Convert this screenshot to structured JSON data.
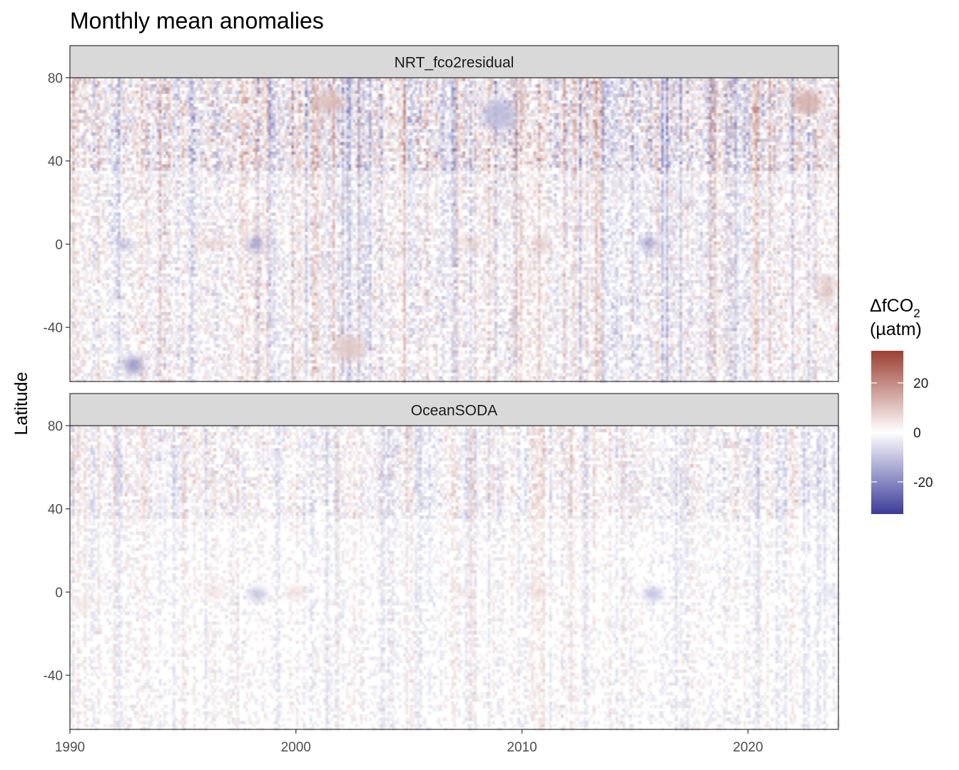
{
  "chart_data": {
    "type": "heatmap",
    "title": "Monthly mean anomalies",
    "ylabel": "Latitude",
    "xlabel": "",
    "xlim": [
      1990,
      2024
    ],
    "ylim": [
      -66,
      80
    ],
    "x_ticks": [
      1990,
      2000,
      2010,
      2020
    ],
    "y_ticks": [
      80,
      40,
      0,
      -40
    ],
    "grid": false,
    "panels": [
      {
        "name": "NRT_fco2residual",
        "features": [
          {
            "x": 1992.4,
            "y": 0,
            "w": 0.6,
            "h": 4,
            "value": -14
          },
          {
            "x": 1998.2,
            "y": 0,
            "w": 0.6,
            "h": 5,
            "value": -24
          },
          {
            "x": 2015.6,
            "y": 0,
            "w": 0.7,
            "h": 5,
            "value": -20
          },
          {
            "x": 2010.9,
            "y": 0,
            "w": 0.8,
            "h": 5,
            "value": 12
          },
          {
            "x": 1996.2,
            "y": 0,
            "w": 1.5,
            "h": 4,
            "value": 9
          },
          {
            "x": 2007.7,
            "y": 0,
            "w": 0.8,
            "h": 4,
            "value": 10
          },
          {
            "x": 2023.5,
            "y": -22,
            "w": 0.6,
            "h": 12,
            "value": 12
          },
          {
            "x": 2001.5,
            "y": 68,
            "w": 1.2,
            "h": 10,
            "value": 12
          },
          {
            "x": 2022.6,
            "y": 68,
            "w": 1.2,
            "h": 12,
            "value": 14
          },
          {
            "x": 1992.8,
            "y": -58,
            "w": 0.8,
            "h": 8,
            "value": -20
          },
          {
            "x": 2002.4,
            "y": -50,
            "w": 1.3,
            "h": 12,
            "value": 10
          },
          {
            "x": 2009.0,
            "y": 62,
            "w": 1.5,
            "h": 14,
            "value": -12
          }
        ]
      },
      {
        "name": "OceanSODA",
        "features": [
          {
            "x": 1998.3,
            "y": -1,
            "w": 0.8,
            "h": 5,
            "value": -14
          },
          {
            "x": 2015.8,
            "y": -1,
            "w": 0.8,
            "h": 5,
            "value": -15
          },
          {
            "x": 2000.0,
            "y": 0,
            "w": 1.0,
            "h": 4,
            "value": 8
          },
          {
            "x": 2010.8,
            "y": 0,
            "w": 0.6,
            "h": 4,
            "value": 9
          },
          {
            "x": 2023.6,
            "y": 0,
            "w": 0.5,
            "h": 4,
            "value": -10
          },
          {
            "x": 1990.6,
            "y": -6,
            "w": 0.8,
            "h": 5,
            "value": 6
          },
          {
            "x": 1996.4,
            "y": 0,
            "w": 1.0,
            "h": 3,
            "value": 7
          },
          {
            "x": 2007.4,
            "y": 0,
            "w": 0.7,
            "h": 3,
            "value": 7
          }
        ]
      }
    ],
    "legend": {
      "title_main": "ΔfCO",
      "title_sub": "2",
      "title_unit": "(µatm)",
      "ticks": [
        20,
        0,
        -20
      ],
      "range": [
        -33,
        33
      ],
      "position": "right",
      "colors": {
        "low": "#3b3b99",
        "mid": "#ffffff",
        "high": "#9c3f33"
      }
    }
  }
}
